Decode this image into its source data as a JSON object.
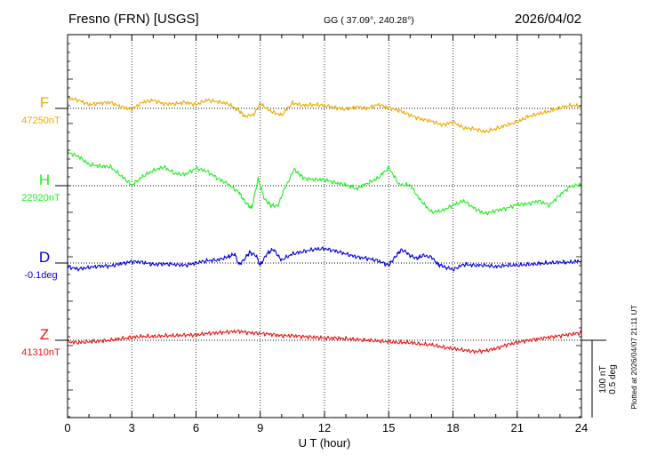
{
  "header": {
    "station": "Fresno (FRN)  [USGS]",
    "coords": "GG ( 37.09°, 240.28°)",
    "date": "2026/04/02"
  },
  "side_note": "Plotted at 2026/04/07 21:11 UT",
  "scale_bar": {
    "line1": "100 nT",
    "line2": "0.5 deg"
  },
  "chart_data": {
    "type": "line",
    "title": "Fresno (FRN)  [USGS]",
    "xlabel": "U T (hour)",
    "x_range": [
      0,
      24
    ],
    "x_ticks": [
      0,
      3,
      6,
      9,
      12,
      15,
      18,
      21,
      24
    ],
    "grid": "dotted",
    "series": [
      {
        "key": "F",
        "label": "F",
        "baseline": "47250nT",
        "color": "#f0a800",
        "x": [
          0,
          0.5,
          1,
          1.5,
          2,
          2.5,
          3,
          3.5,
          4,
          4.5,
          5,
          5.5,
          6,
          6.5,
          7,
          7.5,
          8,
          8.3,
          8.7,
          9,
          9.5,
          10,
          10.5,
          11,
          11.5,
          12,
          12.5,
          13,
          13.5,
          14,
          14.5,
          15,
          15.5,
          16,
          16.5,
          17,
          17.5,
          18,
          18.5,
          19,
          19.5,
          20,
          20.5,
          21,
          21.5,
          22,
          22.5,
          23,
          23.5,
          24
        ],
        "values": [
          14,
          11,
          5,
          7,
          8,
          2,
          -1,
          8,
          11,
          6,
          6,
          8,
          5,
          11,
          9,
          6,
          -3,
          -11,
          -8,
          6,
          -4,
          -9,
          7,
          4,
          5,
          4,
          1,
          -1,
          2,
          0,
          5,
          1,
          -3,
          -9,
          -14,
          -17,
          -22,
          -18,
          -26,
          -27,
          -31,
          -27,
          -22,
          -18,
          -11,
          -7,
          -4,
          1,
          4,
          3
        ]
      },
      {
        "key": "H",
        "label": "H",
        "baseline": "22920nT",
        "color": "#22ee22",
        "x": [
          0,
          0.5,
          1,
          1.5,
          2,
          2.5,
          3,
          3.5,
          4,
          4.5,
          5,
          5.5,
          6,
          6.5,
          7,
          7.5,
          8,
          8.3,
          8.6,
          8.9,
          9.2,
          9.5,
          9.8,
          10.2,
          10.6,
          11,
          11.5,
          12,
          12.5,
          13,
          13.5,
          14,
          14.5,
          15,
          15.5,
          16,
          16.5,
          17,
          17.5,
          18,
          18.5,
          19,
          19.5,
          20,
          20.5,
          21,
          21.5,
          22,
          22.5,
          23,
          23.5,
          24
        ],
        "values": [
          44,
          39,
          28,
          26,
          25,
          13,
          1,
          12,
          20,
          25,
          16,
          15,
          23,
          19,
          10,
          2,
          -9,
          -22,
          -30,
          9,
          -18,
          -26,
          -27,
          0,
          22,
          10,
          8,
          8,
          4,
          1,
          -4,
          3,
          10,
          24,
          1,
          1,
          -20,
          -35,
          -33,
          -26,
          -20,
          -30,
          -37,
          -33,
          -30,
          -25,
          -24,
          -20,
          -26,
          -12,
          -1,
          2
        ]
      },
      {
        "key": "D",
        "label": "D",
        "baseline": "-0.1deg",
        "color": "#0000dd",
        "x": [
          0,
          0.5,
          1,
          1.5,
          2,
          2.5,
          3,
          3.5,
          4,
          4.5,
          5,
          5.5,
          6,
          6.5,
          7,
          7.5,
          7.8,
          8,
          8.2,
          8.5,
          8.8,
          9,
          9.3,
          9.6,
          10,
          10.5,
          11,
          11.5,
          12,
          12.5,
          13,
          13.5,
          14,
          14.5,
          15,
          15.3,
          15.6,
          16,
          16.3,
          16.6,
          17,
          17.3,
          17.6,
          18,
          18.5,
          19,
          19.5,
          20,
          20.5,
          21,
          21.5,
          22,
          22.5,
          23,
          23.5,
          24
        ],
        "values": [
          -5,
          -8,
          -6,
          -4,
          -4,
          -1,
          2,
          1,
          -2,
          -1,
          -2,
          -3,
          0,
          3,
          4,
          8,
          12,
          -2,
          3,
          14,
          10,
          -3,
          12,
          18,
          4,
          12,
          15,
          18,
          19,
          16,
          12,
          8,
          6,
          3,
          -3,
          8,
          18,
          10,
          6,
          10,
          8,
          -2,
          -5,
          -9,
          -2,
          -3,
          -3,
          -5,
          -3,
          -3,
          -2,
          -1,
          0,
          1,
          1,
          3
        ]
      },
      {
        "key": "Z",
        "label": "Z",
        "baseline": "41310nT",
        "color": "#ee1111",
        "x": [
          0,
          0.5,
          1,
          1.5,
          2,
          2.5,
          3,
          3.5,
          4,
          4.5,
          5,
          5.5,
          6,
          6.5,
          7,
          7.5,
          8,
          8.5,
          9,
          9.5,
          10,
          10.5,
          11,
          11.5,
          12,
          12.5,
          13,
          13.5,
          14,
          14.5,
          15,
          15.5,
          16,
          16.5,
          17,
          17.5,
          18,
          18.5,
          19,
          19.5,
          20,
          20.5,
          21,
          21.5,
          22,
          22.5,
          23,
          23.5,
          24
        ],
        "values": [
          -2,
          -3,
          -2,
          -1,
          0,
          2,
          4,
          5,
          5,
          6,
          6,
          7,
          7,
          9,
          10,
          11,
          12,
          10,
          9,
          8,
          6,
          6,
          5,
          4,
          3,
          3,
          2,
          1,
          0,
          -1,
          -2,
          -3,
          -3,
          -5,
          -6,
          -9,
          -11,
          -13,
          -15,
          -14,
          -11,
          -6,
          -3,
          0,
          2,
          4,
          6,
          8,
          10
        ]
      }
    ]
  }
}
